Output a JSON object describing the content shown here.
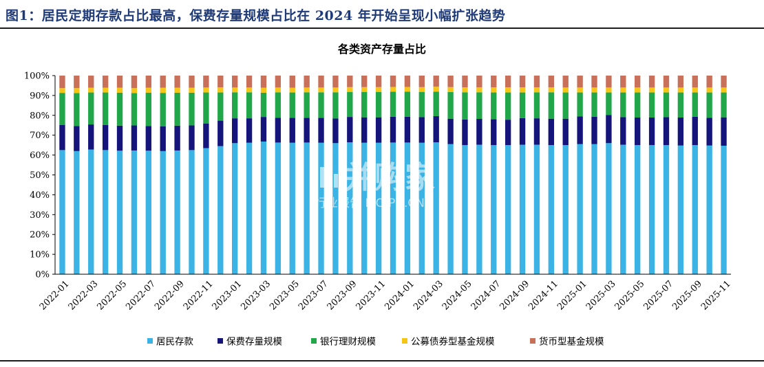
{
  "figure": {
    "title": "图1：居民定期存款占比最高，保费存量规模占比在 2024 年开始呈现小幅扩张趋势"
  },
  "watermark": {
    "text": "并购家",
    "sub": "行业报告 IPOIPO.CN",
    "icon": "building-chart-icon"
  },
  "chart_data": {
    "type": "bar",
    "stacked": true,
    "title": "各类资产存量占比",
    "ylim": [
      0,
      100
    ],
    "yticks": [
      "0%",
      "10%",
      "20%",
      "30%",
      "40%",
      "50%",
      "60%",
      "70%",
      "80%",
      "90%",
      "100%"
    ],
    "legend_position": "bottom",
    "grid": false,
    "categories": [
      "2022-01",
      "2022-02",
      "2022-03",
      "2022-04",
      "2022-05",
      "2022-06",
      "2022-07",
      "2022-08",
      "2022-09",
      "2022-10",
      "2022-11",
      "2022-12",
      "2023-01",
      "2023-02",
      "2023-03",
      "2023-04",
      "2023-05",
      "2023-06",
      "2023-07",
      "2023-08",
      "2023-09",
      "2023-10",
      "2023-11",
      "2023-12",
      "2024-01",
      "2024-02",
      "2024-03",
      "2024-04",
      "2024-05",
      "2024-06",
      "2024-07",
      "2024-08",
      "2024-09",
      "2024-10",
      "2024-11",
      "2024-12",
      "2025-01",
      "2025-02",
      "2025-03",
      "2025-04",
      "2025-05",
      "2025-06",
      "2025-07",
      "2025-08",
      "2025-09",
      "2025-10",
      "2025-11"
    ],
    "xtick_labels": [
      "2022-01",
      "2022-03",
      "2022-05",
      "2022-07",
      "2022-09",
      "2022-11",
      "2023-01",
      "2023-03",
      "2023-05",
      "2023-07",
      "2023-09",
      "2023-11",
      "2024-01",
      "2024-03",
      "2024-05",
      "2024-07",
      "2024-09",
      "2024-11",
      "2025-01",
      "2025-03",
      "2025-05",
      "2025-07",
      "2025-09",
      "2025-11"
    ],
    "series": [
      {
        "name": "居民存款",
        "color": "#3bb4e5",
        "values": [
          62.5,
          62,
          62.8,
          62.5,
          62.2,
          62.3,
          62.2,
          62,
          62.3,
          62.5,
          63.5,
          64.5,
          66,
          66.2,
          66.8,
          66.3,
          66.2,
          66.3,
          66.2,
          66,
          66.4,
          66.2,
          66.2,
          66.3,
          66.3,
          66.2,
          66.4,
          65.5,
          65,
          65.2,
          65,
          65,
          65.2,
          65.2,
          65,
          65,
          65.5,
          65.5,
          66,
          65.2,
          65,
          65,
          65,
          64.8,
          65,
          64.8,
          64.7
        ]
      },
      {
        "name": "保费存量规模",
        "color": "#14147a",
        "values": [
          12.7,
          12.6,
          12.6,
          12.6,
          12.6,
          12.6,
          12.4,
          12.4,
          12.5,
          12.4,
          12.4,
          12.8,
          12.5,
          12.3,
          12.4,
          12.5,
          12.5,
          12.4,
          12.5,
          12.4,
          12.8,
          12.8,
          12.8,
          13,
          13,
          12.9,
          13.2,
          12.8,
          12.9,
          13,
          13,
          12.8,
          13.4,
          13.3,
          13.3,
          13.3,
          13.9,
          13.8,
          14.1,
          13.9,
          13.9,
          13.9,
          14.1,
          14.1,
          14.3,
          14,
          14.3
        ]
      },
      {
        "name": "银行理财规模",
        "color": "#21a64a",
        "values": [
          16.1,
          16.6,
          16.1,
          16.4,
          16.6,
          16.3,
          16.8,
          16.9,
          16.6,
          16.5,
          15.6,
          14.2,
          13.1,
          13.1,
          12.2,
          12.8,
          12.8,
          12.9,
          12.9,
          13.2,
          12.6,
          12.8,
          12.8,
          12.6,
          12.6,
          12.7,
          12.3,
          13.4,
          13.7,
          13.4,
          13.5,
          13.7,
          12.9,
          13.1,
          13.3,
          13.2,
          12.1,
          12.2,
          11.4,
          12.4,
          12.6,
          12.6,
          12.4,
          12.6,
          12.2,
          12.7,
          12.5
        ]
      },
      {
        "name": "公募债券型基金规模",
        "color": "#f5c518",
        "values": [
          2.4,
          2.5,
          2.4,
          2.4,
          2.5,
          2.5,
          2.5,
          2.6,
          2.5,
          2.5,
          2.5,
          2.6,
          2.4,
          2.4,
          2.5,
          2.4,
          2.4,
          2.4,
          2.4,
          2.4,
          2.4,
          2.4,
          2.4,
          2.4,
          2.4,
          2.4,
          2.5,
          2.5,
          2.5,
          2.5,
          2.6,
          2.6,
          2.6,
          2.5,
          2.5,
          2.5,
          2.5,
          2.5,
          2.5,
          2.5,
          2.5,
          2.5,
          2.5,
          2.5,
          2.5,
          2.5,
          2.5
        ]
      },
      {
        "name": "货币型基金规模",
        "color": "#c9705a",
        "values": [
          6.3,
          6.3,
          6.1,
          6.1,
          6.1,
          6.3,
          6.1,
          6.1,
          6.1,
          6.1,
          6,
          5.9,
          6,
          6,
          6.1,
          6,
          6.1,
          6,
          6,
          6,
          5.8,
          5.8,
          5.8,
          5.7,
          5.7,
          5.8,
          5.6,
          5.8,
          5.9,
          5.9,
          5.9,
          5.9,
          5.9,
          5.9,
          5.9,
          6,
          6,
          6,
          6,
          6,
          6,
          6,
          6,
          6,
          6,
          6,
          6
        ]
      }
    ]
  }
}
